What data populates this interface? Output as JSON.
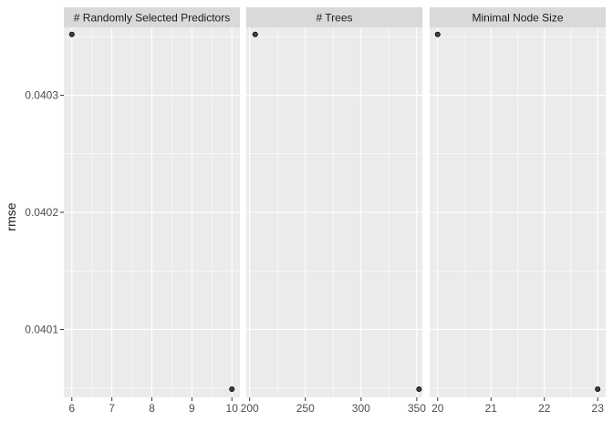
{
  "chart_data": {
    "type": "scatter",
    "ylabel": "rmse",
    "y_ticks": [
      0.0401,
      0.0402,
      0.0403
    ],
    "ylim": [
      0.040042,
      0.040358
    ],
    "panels": [
      {
        "label": "# Randomly Selected Predictors",
        "x_ticks": [
          6,
          7,
          8,
          9,
          10
        ],
        "xlim": [
          5.8,
          10.2
        ],
        "points": [
          {
            "x": 6,
            "y": 0.040352
          },
          {
            "x": 10,
            "y": 0.040049
          }
        ]
      },
      {
        "label": "# Trees",
        "x_ticks": [
          200,
          250,
          300,
          350
        ],
        "xlim": [
          197,
          355
        ],
        "points": [
          {
            "x": 205,
            "y": 0.040352
          },
          {
            "x": 352,
            "y": 0.040049
          }
        ]
      },
      {
        "label": "Minimal Node Size",
        "x_ticks": [
          20,
          21,
          22,
          23
        ],
        "xlim": [
          19.85,
          23.15
        ],
        "points": [
          {
            "x": 20,
            "y": 0.040352
          },
          {
            "x": 23,
            "y": 0.040049
          }
        ]
      }
    ],
    "grid": true,
    "colors": {
      "panel_bg": "#ebebeb",
      "strip_bg": "#d9d9d9",
      "grid": "#ffffff",
      "point_fill": "#404040",
      "point_stroke": "#000000",
      "text": "#4d4d4d",
      "strip_text": "#1a1a1a"
    }
  }
}
